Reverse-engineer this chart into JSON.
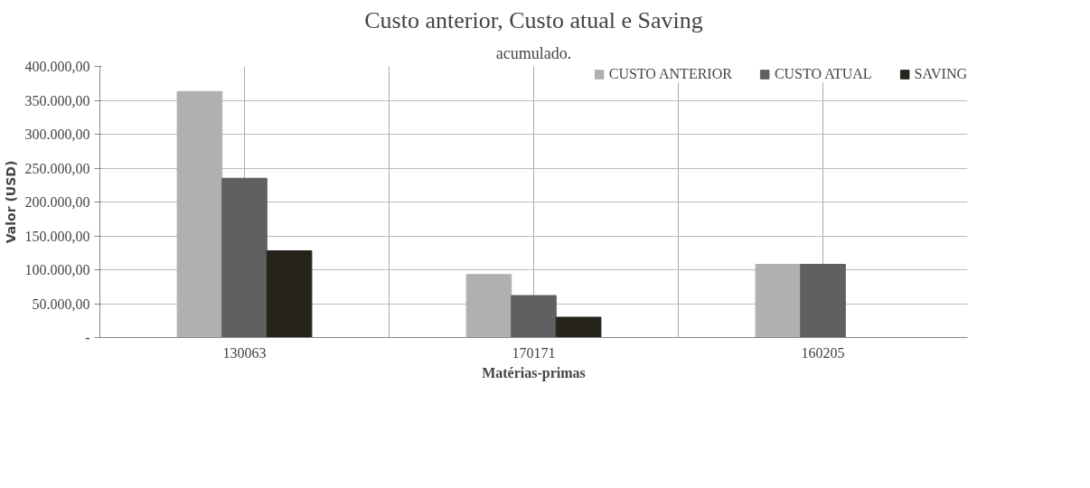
{
  "chart_data": {
    "type": "bar",
    "title": "Custo anterior, Custo atual e Saving",
    "xlabel": "Matérias-primas",
    "ylabel": "Valor (USD)",
    "annotations": [
      "acumulado."
    ],
    "categories": [
      "130063",
      "170171",
      "160205"
    ],
    "series": [
      {
        "name": "CUSTO ANTERIOR",
        "color": "#b0b0b0",
        "values": [
          363000,
          93000,
          108000
        ]
      },
      {
        "name": "CUSTO ATUAL",
        "color": "#606060",
        "values": [
          235000,
          62000,
          108000
        ]
      },
      {
        "name": "SAVING",
        "color": "#25231a",
        "values": [
          128000,
          30000,
          null
        ]
      }
    ],
    "ylim": [
      0,
      400000
    ],
    "yticks": [
      {
        "value": 0,
        "label": "-"
      },
      {
        "value": 50000,
        "label": "50.000,00"
      },
      {
        "value": 100000,
        "label": "100.000,00"
      },
      {
        "value": 150000,
        "label": "150.000,00"
      },
      {
        "value": 200000,
        "label": "200.000,00"
      },
      {
        "value": 250000,
        "label": "250.000,00"
      },
      {
        "value": 300000,
        "label": "300.000,00"
      },
      {
        "value": 350000,
        "label": "350.000,00"
      },
      {
        "value": 400000,
        "label": "400.000,00"
      }
    ],
    "grid": true,
    "legend": "top right"
  }
}
